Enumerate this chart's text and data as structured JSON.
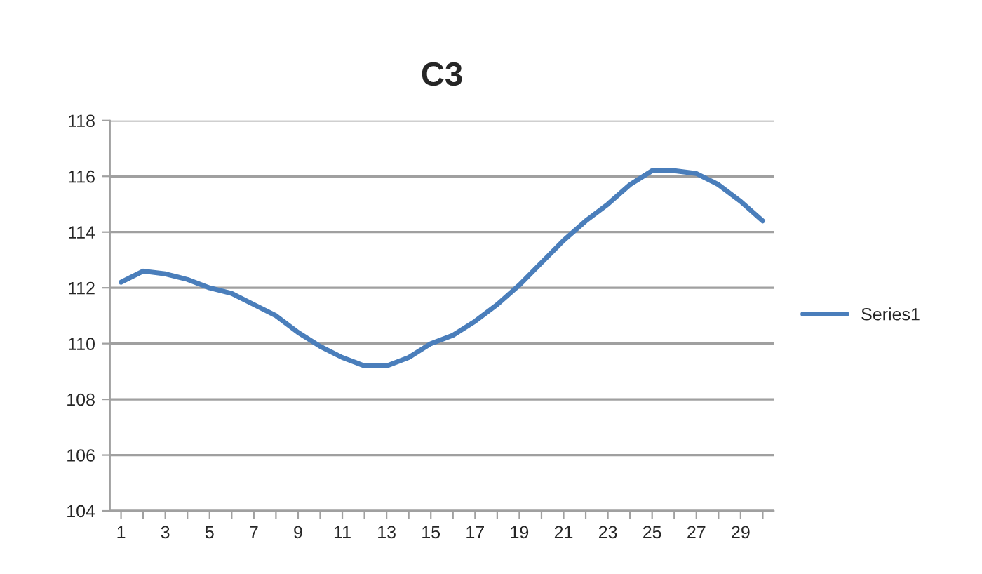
{
  "chart_data": {
    "type": "line",
    "title": "C3",
    "categories": [
      "1",
      null,
      "3",
      null,
      "5",
      null,
      "7",
      null,
      "9",
      null,
      "11",
      null,
      "13",
      null,
      "15",
      null,
      "17",
      null,
      "19",
      null,
      "21",
      null,
      "23",
      null,
      "25",
      null,
      "27",
      null,
      "29",
      null
    ],
    "series": [
      {
        "name": "Series1",
        "color": "#4a7ebb",
        "values": [
          112.2,
          112.6,
          112.5,
          112.3,
          112.0,
          111.8,
          111.4,
          111.0,
          110.4,
          109.9,
          109.5,
          109.2,
          109.2,
          109.5,
          110.0,
          110.3,
          110.8,
          111.4,
          112.1,
          112.9,
          113.7,
          114.4,
          115.0,
          115.7,
          116.2,
          116.2,
          116.1,
          115.7,
          115.1,
          114.4
        ]
      }
    ],
    "ylim": [
      104,
      118
    ],
    "yticks": [
      104,
      106,
      108,
      110,
      112,
      114,
      116,
      118
    ],
    "grid": "y",
    "legend": "right",
    "marker": "none",
    "line_style": "solid"
  }
}
